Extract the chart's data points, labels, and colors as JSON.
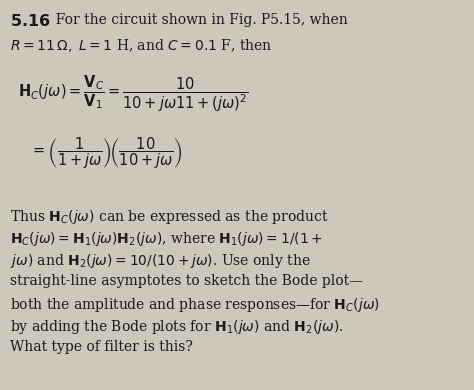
{
  "bg_color": "#cec8bc",
  "text_color": "#1a1a1a",
  "fig_width": 4.74,
  "fig_height": 3.9,
  "dpi": 100,
  "fs_base": 10.0,
  "fs_eq": 10.5,
  "header_bold": "5.16",
  "header_rest": "  For the circuit shown in Fig. P5.15, when",
  "line2": "$R = 11\\,\\Omega,\\; L = 1$ H, and $C = 0.1$ F, then",
  "eq1": "$\\mathbf{H}_C(j\\omega) = \\dfrac{\\mathbf{V}_C}{\\mathbf{V}_1} = \\dfrac{10}{10 + j\\omega11 + (j\\omega)^2}$",
  "eq2": "$= \\left(\\dfrac{1}{1 + j\\omega}\\right)\\!\\left(\\dfrac{10}{10 + j\\omega}\\right)$",
  "p1": "Thus $\\mathbf{H}_C(j\\omega)$ can be expressed as the product",
  "p2": "$\\mathbf{H}_C(j\\omega) = \\mathbf{H}_1(j\\omega)\\mathbf{H}_2(j\\omega)$, where $\\mathbf{H}_1(j\\omega) = 1/(1 +$",
  "p3": "$j\\omega)$ and $\\mathbf{H}_2(j\\omega) = 10/(10 + j\\omega)$. Use only the",
  "p4": "straight-line asymptotes to sketch the Bode plot—",
  "p5": "both the amplitude and phase responses—for $\\mathbf{H}_C(j\\omega)$",
  "p6": "by adding the Bode plots for $\\mathbf{H}_1(j\\omega)$ and $\\mathbf{H}_2(j\\omega)$.",
  "p7": "What type of filter is this?"
}
